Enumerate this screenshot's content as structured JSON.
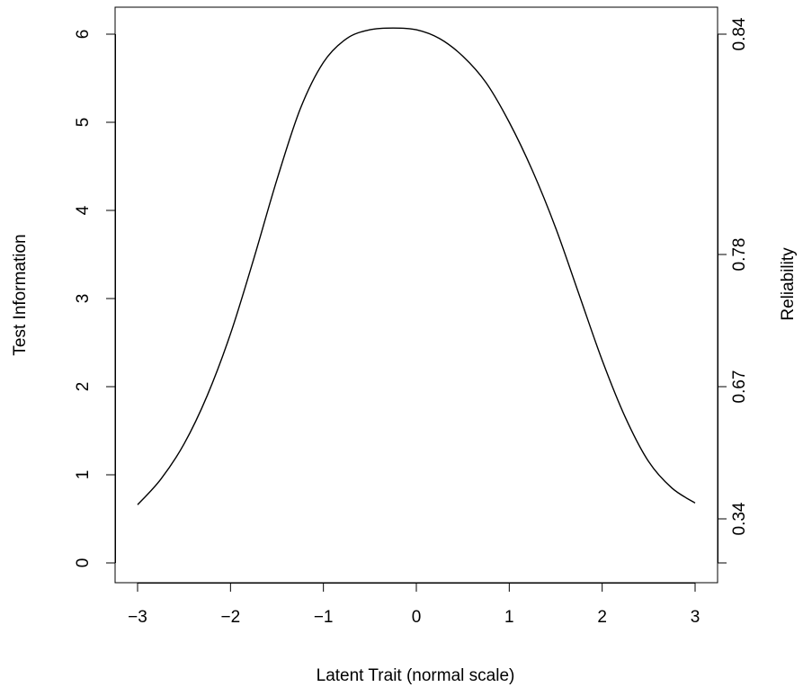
{
  "chart_data": {
    "type": "line",
    "title": "",
    "xlabel": "Latent Trait (normal scale)",
    "ylabel": "Test Information",
    "y2label": "Reliability",
    "xlim": [
      -3,
      3
    ],
    "ylim": [
      0,
      6.1
    ],
    "x_ticks": [
      "−3",
      "−2",
      "−1",
      "0",
      "1",
      "2",
      "3"
    ],
    "x_tick_values": [
      -3,
      -2,
      -1,
      0,
      1,
      2,
      3
    ],
    "y_ticks": [
      "0",
      "1",
      "2",
      "3",
      "4",
      "5",
      "6"
    ],
    "y_tick_values": [
      0,
      1,
      2,
      3,
      4,
      5,
      6
    ],
    "y2_ticks": [
      "0.34",
      "0.67",
      "0.78",
      "0.84"
    ],
    "y2_tick_positions": [
      0.5,
      2,
      3.5,
      6
    ],
    "grid": false,
    "legend": "none",
    "series": [
      {
        "x": [
          -3.0,
          -2.75,
          -2.5,
          -2.25,
          -2.0,
          -1.75,
          -1.5,
          -1.25,
          -1.0,
          -0.75,
          -0.5,
          -0.25,
          0.0,
          0.25,
          0.5,
          0.75,
          1.0,
          1.25,
          1.5,
          1.75,
          2.0,
          2.25,
          2.5,
          2.75,
          3.0
        ],
        "values": [
          0.66,
          0.95,
          1.35,
          1.9,
          2.6,
          3.45,
          4.35,
          5.15,
          5.68,
          5.95,
          6.05,
          6.07,
          6.05,
          5.95,
          5.75,
          5.45,
          5.0,
          4.45,
          3.8,
          3.05,
          2.3,
          1.65,
          1.15,
          0.85,
          0.68
        ]
      }
    ]
  }
}
